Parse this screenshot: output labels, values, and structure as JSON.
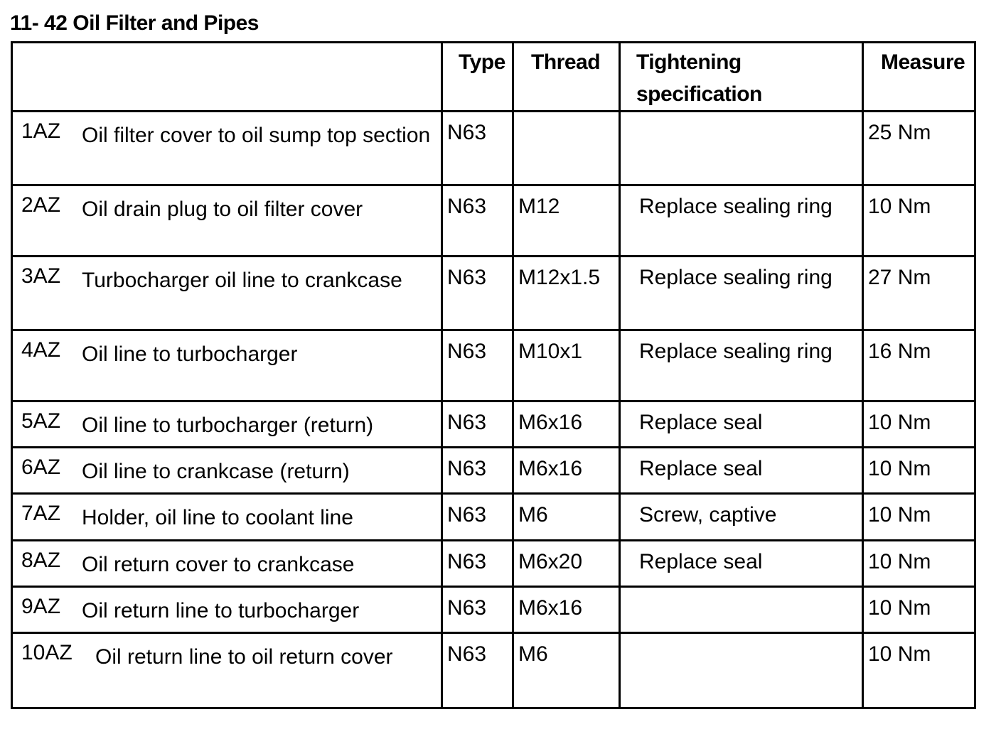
{
  "title": "11- 42 Oil Filter and Pipes",
  "headers": {
    "item": "",
    "type": "Type",
    "thread": "Thread",
    "tightening": "Tightening specification",
    "measure": "Measure"
  },
  "rows": [
    {
      "id": "1AZ",
      "description": "Oil filter cover to oil sump top section",
      "type": "N63",
      "thread": "",
      "tightening": "",
      "measure": "25 Nm"
    },
    {
      "id": "2AZ",
      "description": "Oil drain plug to oil filter cover",
      "type": "N63",
      "thread": "M12",
      "tightening": "Replace sealing ring",
      "measure": "10 Nm"
    },
    {
      "id": "3AZ",
      "description": "Turbocharger oil line to crankcase",
      "type": "N63",
      "thread": "M12x1.5",
      "tightening": "Replace sealing ring",
      "measure": "27 Nm"
    },
    {
      "id": "4AZ",
      "description": "Oil line to turbocharger",
      "type": "N63",
      "thread": "M10x1",
      "tightening": "Replace sealing ring",
      "measure": "16 Nm"
    },
    {
      "id": "5AZ",
      "description": "Oil line to turbocharger (return)",
      "type": "N63",
      "thread": "M6x16",
      "tightening": "Replace seal",
      "measure": "10 Nm"
    },
    {
      "id": "6AZ",
      "description": "Oil line to crankcase (return)",
      "type": "N63",
      "thread": "M6x16",
      "tightening": "Replace seal",
      "measure": "10 Nm"
    },
    {
      "id": "7AZ",
      "description": "Holder, oil line to coolant line",
      "type": "N63",
      "thread": "M6",
      "tightening": "Screw, captive",
      "measure": "10 Nm"
    },
    {
      "id": "8AZ",
      "description": "Oil return cover to crankcase",
      "type": "N63",
      "thread": "M6x20",
      "tightening": "Replace seal",
      "measure": "10 Nm"
    },
    {
      "id": "9AZ",
      "description": "Oil return line to turbocharger",
      "type": "N63",
      "thread": "M6x16",
      "tightening": "",
      "measure": "10 Nm"
    },
    {
      "id": "10AZ",
      "description": "Oil return line to oil return cover",
      "type": "N63",
      "thread": "M6",
      "tightening": "",
      "measure": "10 Nm"
    }
  ]
}
